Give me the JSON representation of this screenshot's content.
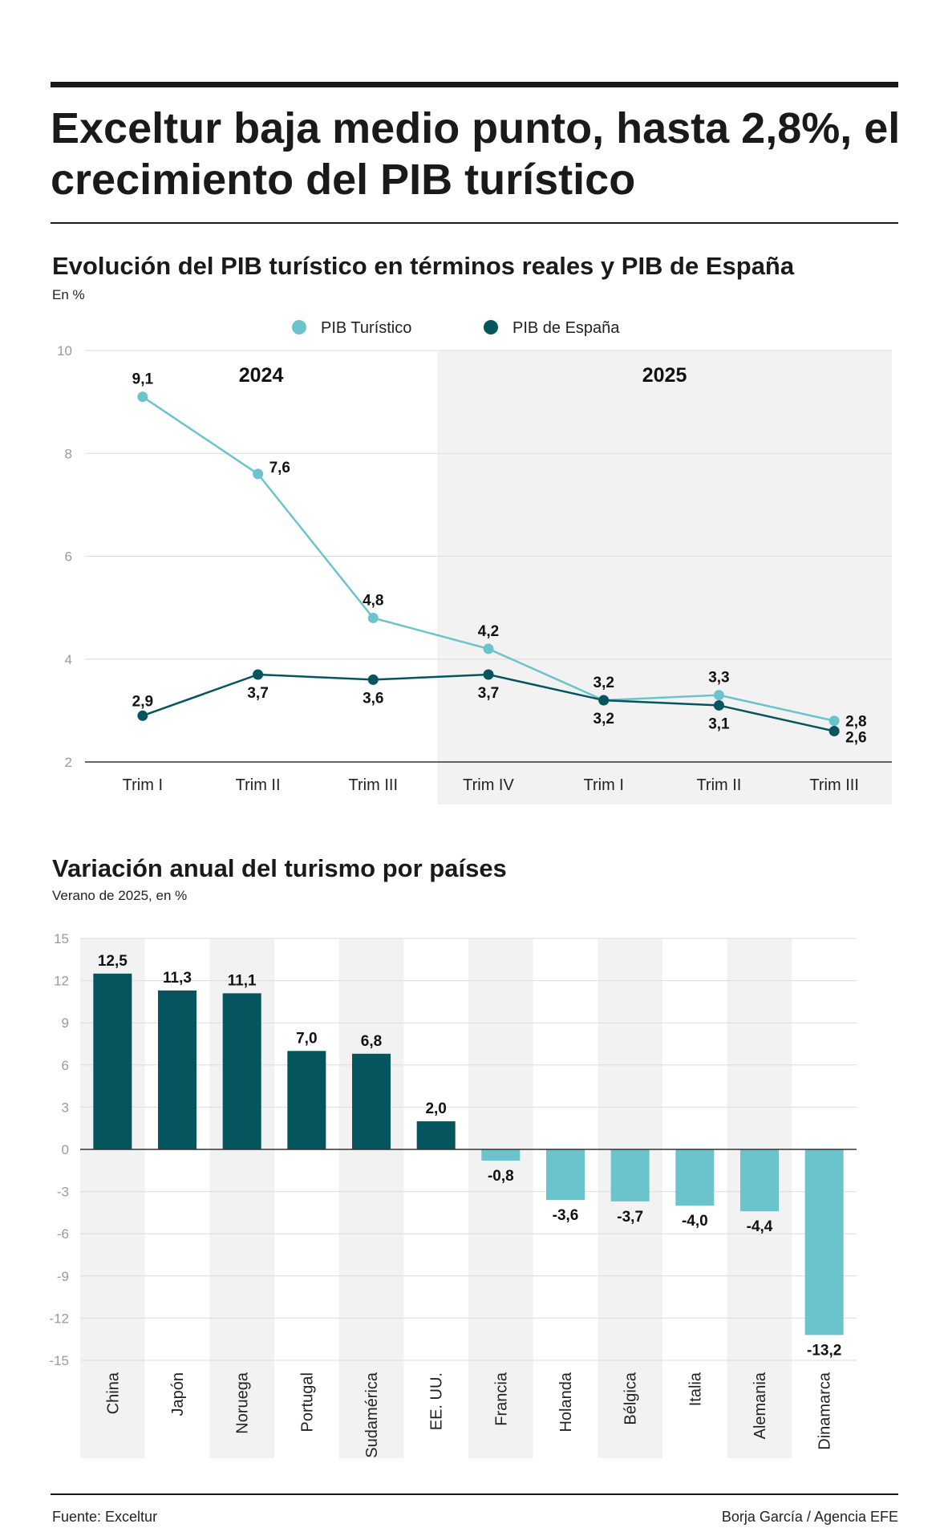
{
  "headline": "Exceltur baja medio punto, hasta 2,8%, el crecimiento del PIB turístico",
  "colors": {
    "pib_turistico": "#6bc3cc",
    "pib_espana": "#05555f",
    "bar_positive": "#05555f",
    "bar_negative": "#6bc3cc",
    "shade": "#f2f2f2"
  },
  "chart1": {
    "title": "Evolución del PIB turístico en términos reales y PIB de España",
    "unit": "En %"
  },
  "chart2": {
    "title": "Variación anual del turismo por países",
    "unit": "Verano de 2025, en %"
  },
  "footer": {
    "source": "Fuente: Exceltur",
    "credit": "Borja García / Agencia EFE"
  },
  "chart_data": [
    {
      "type": "line",
      "title": "Evolución del PIB turístico en términos reales y PIB de España",
      "ylabel": "En %",
      "categories": [
        "Trim I",
        "Trim II",
        "Trim III",
        "Trim IV",
        "Trim I",
        "Trim II",
        "Trim III"
      ],
      "periods": [
        {
          "label": "2024",
          "from": 0,
          "to": 3
        },
        {
          "label": "2025",
          "from": 3,
          "to": 6
        }
      ],
      "yticks": [
        10,
        8,
        6,
        4,
        2
      ],
      "ylim": [
        2,
        10
      ],
      "legend": "top-center",
      "series": [
        {
          "name": "PIB Turístico",
          "values": [
            9.1,
            7.6,
            4.8,
            4.2,
            3.2,
            3.3,
            2.8
          ],
          "labels": [
            "9,1",
            "7,6",
            "4,8",
            "4,2",
            "3,2",
            "3,3",
            "2,8"
          ]
        },
        {
          "name": "PIB de España",
          "values": [
            2.9,
            3.7,
            3.6,
            3.7,
            3.2,
            3.1,
            2.6
          ],
          "labels": [
            "2,9",
            "3,7",
            "3,6",
            "3,7",
            "3,2",
            "3,1",
            "2,6"
          ]
        }
      ]
    },
    {
      "type": "bar",
      "title": "Variación anual del turismo por países",
      "ylabel": "Verano de 2025, en %",
      "categories": [
        "China",
        "Japón",
        "Noruega",
        "Portugal",
        "Sudamérica",
        "EE. UU.",
        "Francia",
        "Holanda",
        "Bélgica",
        "Italia",
        "Alemania",
        "Dinamarca"
      ],
      "values": [
        12.5,
        11.3,
        11.1,
        7.0,
        6.8,
        2.0,
        -0.8,
        -3.6,
        -3.7,
        -4.0,
        -4.4,
        -13.2
      ],
      "labels": [
        "12,5",
        "11,3",
        "11,1",
        "7,0",
        "6,8",
        "2,0",
        "-0,8",
        "-3,6",
        "-3,7",
        "-4,0",
        "-4,4",
        "-13,2"
      ],
      "yticks": [
        15,
        12,
        9,
        6,
        3,
        0,
        -3,
        -6,
        -9,
        -12,
        -15
      ],
      "ylim": [
        -15,
        15
      ]
    }
  ]
}
